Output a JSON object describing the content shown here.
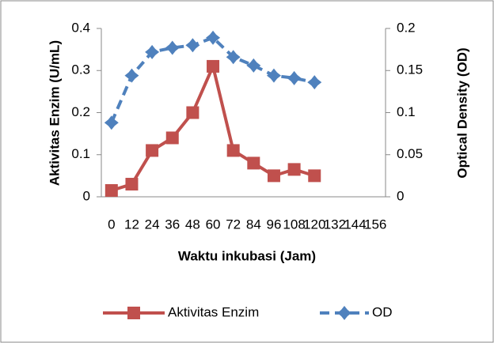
{
  "chart_data": {
    "type": "line",
    "xlabel": "Waktu inkubasi (Jam)",
    "ylabel": "Aktivitas Enzim (U/mL)",
    "y2label": "Optical Density (OD)",
    "categories": [
      "0",
      "12",
      "24",
      "36",
      "48",
      "60",
      "72",
      "84",
      "96",
      "108",
      "120",
      "132",
      "144",
      "156"
    ],
    "series": [
      {
        "name": "Aktivitas Enzim",
        "color": "#c0504d",
        "marker": "square",
        "dash": false,
        "values": [
          0.015,
          0.03,
          0.11,
          0.14,
          0.2,
          0.31,
          0.11,
          0.08,
          0.05,
          0.065,
          0.05,
          null,
          null,
          null
        ]
      },
      {
        "name": "OD",
        "color": "#4f81bd",
        "marker": "diamond",
        "dash": true,
        "axis": "y2",
        "values": [
          0.088,
          0.144,
          0.172,
          0.177,
          0.18,
          0.189,
          0.166,
          0.156,
          0.144,
          0.141,
          0.136,
          null,
          null,
          null
        ]
      }
    ],
    "ylim": [
      0,
      0.4
    ],
    "yticks": [
      0,
      0.1,
      0.2,
      0.3,
      0.4
    ],
    "y2lim": [
      0,
      0.2
    ],
    "y2ticks": [
      0,
      0.05,
      0.1,
      0.15,
      0.2
    ],
    "legend": "bottom"
  }
}
